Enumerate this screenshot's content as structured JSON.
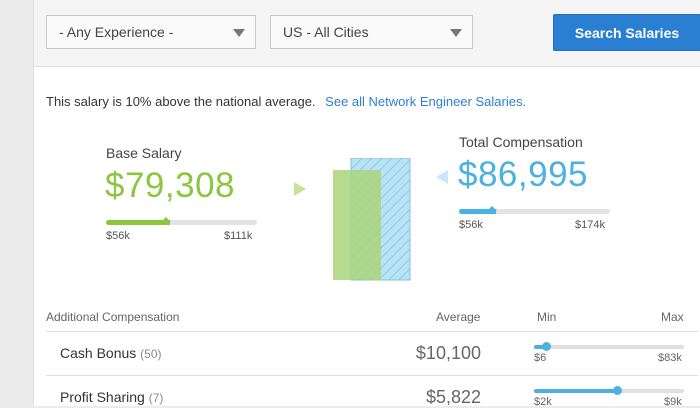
{
  "filters": {
    "experience": "- Any Experience -",
    "location": "US - All Cities",
    "search_label": "Search Salaries"
  },
  "notice": {
    "text": "This salary is 10% above the national average.",
    "link": "See all Network Engineer Salaries."
  },
  "base_salary": {
    "label": "Base Salary",
    "value": "$79,308",
    "min": "$56k",
    "max": "$111k",
    "position": 0.4,
    "color": "#8cc63f"
  },
  "total_compensation": {
    "label": "Total Compensation",
    "value": "$86,995",
    "min": "$56k",
    "max": "$174k",
    "position": 0.22,
    "color": "#4ab1e0"
  },
  "additional": {
    "header": "Additional Compensation",
    "col_average": "Average",
    "col_min": "Min",
    "col_max": "Max",
    "rows": [
      {
        "label": "Cash Bonus",
        "count": "(50)",
        "average": "$10,100",
        "min": "$6",
        "max": "$83k",
        "position": 0.08
      },
      {
        "label": "Profit Sharing",
        "count": "(7)",
        "average": "$5,822",
        "min": "$2k",
        "max": "$9k",
        "position": 0.55
      }
    ]
  }
}
